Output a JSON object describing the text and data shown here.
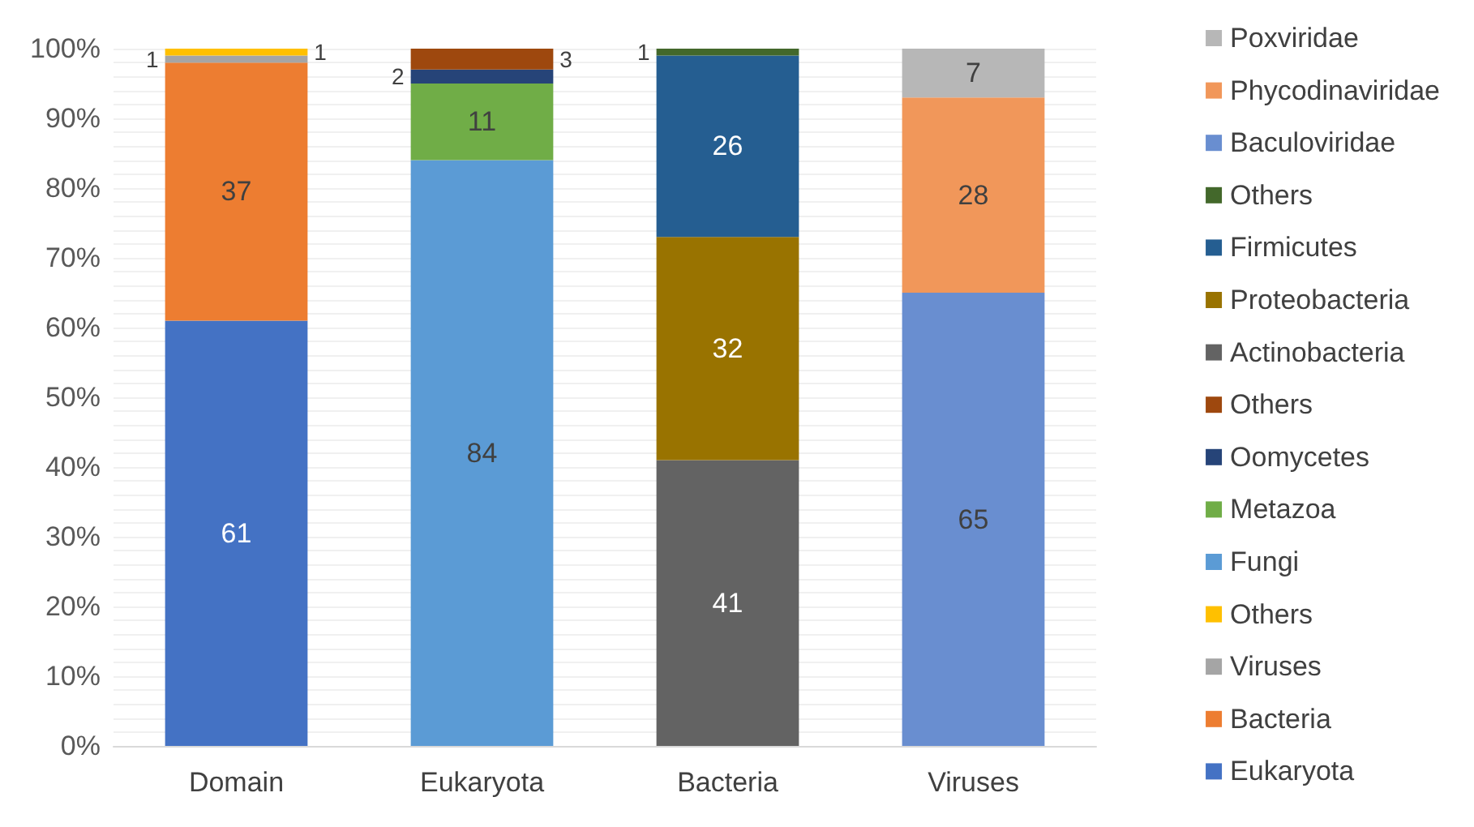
{
  "chart_data": {
    "type": "bar",
    "stacked": true,
    "data_labels": true,
    "grid": true,
    "legend": "right",
    "categories": [
      "Domain",
      "Eukaryota",
      "Bacteria",
      "Viruses"
    ],
    "ylim": [
      0,
      100
    ],
    "yticks": [
      {
        "value": 0,
        "label": "0%"
      },
      {
        "value": 2,
        "label": null
      },
      {
        "value": 4,
        "label": null
      },
      {
        "value": 6,
        "label": null
      },
      {
        "value": 8,
        "label": null
      },
      {
        "value": 10,
        "label": "10%"
      },
      {
        "value": 12,
        "label": null
      },
      {
        "value": 14,
        "label": null
      },
      {
        "value": 16,
        "label": null
      },
      {
        "value": 18,
        "label": null
      },
      {
        "value": 20,
        "label": "20%"
      },
      {
        "value": 22,
        "label": null
      },
      {
        "value": 24,
        "label": null
      },
      {
        "value": 26,
        "label": null
      },
      {
        "value": 28,
        "label": null
      },
      {
        "value": 30,
        "label": "30%"
      },
      {
        "value": 32,
        "label": null
      },
      {
        "value": 34,
        "label": null
      },
      {
        "value": 36,
        "label": null
      },
      {
        "value": 38,
        "label": null
      },
      {
        "value": 40,
        "label": "40%"
      },
      {
        "value": 42,
        "label": null
      },
      {
        "value": 44,
        "label": null
      },
      {
        "value": 46,
        "label": null
      },
      {
        "value": 48,
        "label": null
      },
      {
        "value": 50,
        "label": "50%"
      },
      {
        "value": 52,
        "label": null
      },
      {
        "value": 54,
        "label": null
      },
      {
        "value": 56,
        "label": null
      },
      {
        "value": 58,
        "label": null
      },
      {
        "value": 60,
        "label": "60%"
      },
      {
        "value": 62,
        "label": null
      },
      {
        "value": 64,
        "label": null
      },
      {
        "value": 66,
        "label": null
      },
      {
        "value": 68,
        "label": null
      },
      {
        "value": 70,
        "label": "70%"
      },
      {
        "value": 72,
        "label": null
      },
      {
        "value": 74,
        "label": null
      },
      {
        "value": 76,
        "label": null
      },
      {
        "value": 78,
        "label": null
      },
      {
        "value": 80,
        "label": "80%"
      },
      {
        "value": 82,
        "label": null
      },
      {
        "value": 84,
        "label": null
      },
      {
        "value": 86,
        "label": null
      },
      {
        "value": 88,
        "label": null
      },
      {
        "value": 90,
        "label": "90%"
      },
      {
        "value": 92,
        "label": null
      },
      {
        "value": 94,
        "label": null
      },
      {
        "value": 96,
        "label": null
      },
      {
        "value": 98,
        "label": null
      },
      {
        "value": 100,
        "label": "100%"
      }
    ],
    "series": [
      {
        "name": "Eukaryota",
        "color": "#4472c4",
        "values": [
          61,
          null,
          null,
          null
        ]
      },
      {
        "name": "Bacteria",
        "color": "#ed7d31",
        "values": [
          37,
          null,
          null,
          null
        ]
      },
      {
        "name": "Viruses",
        "color": "#a5a5a5",
        "values": [
          1,
          null,
          null,
          null
        ]
      },
      {
        "name": "Others",
        "color": "#ffc000",
        "values": [
          1,
          null,
          null,
          null
        ]
      },
      {
        "name": "Fungi",
        "color": "#5b9bd5",
        "values": [
          null,
          84,
          null,
          null
        ]
      },
      {
        "name": "Metazoa",
        "color": "#70ad47",
        "values": [
          null,
          11,
          null,
          null
        ]
      },
      {
        "name": "Oomycetes",
        "color": "#264478",
        "values": [
          null,
          2,
          null,
          null
        ]
      },
      {
        "name": "Others",
        "color": "#9e480e",
        "values": [
          null,
          3,
          null,
          null
        ]
      },
      {
        "name": "Actinobacteria",
        "color": "#636363",
        "values": [
          null,
          null,
          41,
          null
        ]
      },
      {
        "name": "Proteobacteria",
        "color": "#997300",
        "values": [
          null,
          null,
          32,
          null
        ]
      },
      {
        "name": "Firmicutes",
        "color": "#255e91",
        "values": [
          null,
          null,
          26,
          null
        ]
      },
      {
        "name": "Others",
        "color": "#43682b",
        "values": [
          null,
          null,
          1,
          null
        ]
      },
      {
        "name": "Baculoviridae",
        "color": "#698ed0",
        "values": [
          null,
          null,
          null,
          65
        ]
      },
      {
        "name": "Phycodinaviridae",
        "color": "#f1975a",
        "values": [
          null,
          null,
          null,
          28
        ]
      },
      {
        "name": "Poxviridae",
        "color": "#b7b7b7",
        "values": [
          null,
          null,
          null,
          7
        ]
      }
    ]
  }
}
